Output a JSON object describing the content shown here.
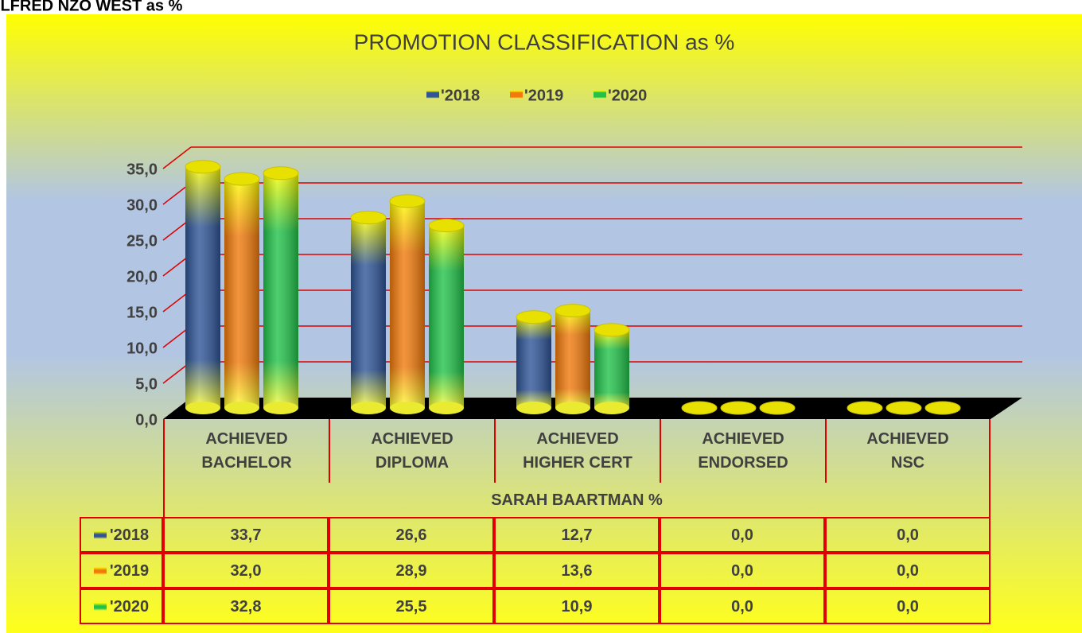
{
  "sheet_label": "ALFRED NZO WEST as %",
  "chart_data": {
    "type": "bar",
    "title": "PROMOTION CLASSIFICATION as %",
    "group_label": "SARAH BAARTMAN %",
    "categories": [
      "ACHIEVED BACHELOR",
      "ACHIEVED DIPLOMA",
      "ACHIEVED HIGHER CERT",
      "ACHIEVED ENDORSED",
      "ACHIEVED NSC"
    ],
    "series": [
      {
        "name": "'2018",
        "color": "#2f5597",
        "values": [
          33.7,
          26.6,
          12.7,
          0.0,
          0.0
        ],
        "value_labels": [
          "33,7",
          "26,6",
          "12,7",
          "0,0",
          "0,0"
        ]
      },
      {
        "name": "'2019",
        "color": "#f07a0c",
        "values": [
          32.0,
          28.9,
          13.6,
          0.0,
          0.0
        ],
        "value_labels": [
          "32,0",
          "28,9",
          "13,6",
          "0,0",
          "0,0"
        ]
      },
      {
        "name": "'2020",
        "color": "#22c24a",
        "values": [
          32.8,
          25.5,
          10.9,
          0.0,
          0.0
        ],
        "value_labels": [
          "32,8",
          "25,5",
          "10,9",
          "0,0",
          "0,0"
        ]
      }
    ],
    "ylim": [
      0,
      35
    ],
    "yticks": [
      {
        "value": 0,
        "label": "0,0"
      },
      {
        "value": 5,
        "label": "5,0"
      },
      {
        "value": 10,
        "label": "10,0"
      },
      {
        "value": 15,
        "label": "15,0"
      },
      {
        "value": 20,
        "label": "20,0"
      },
      {
        "value": 25,
        "label": "25,0"
      },
      {
        "value": 30,
        "label": "30,0"
      },
      {
        "value": 35,
        "label": "35,0"
      }
    ],
    "grid": true,
    "legend": "top"
  }
}
